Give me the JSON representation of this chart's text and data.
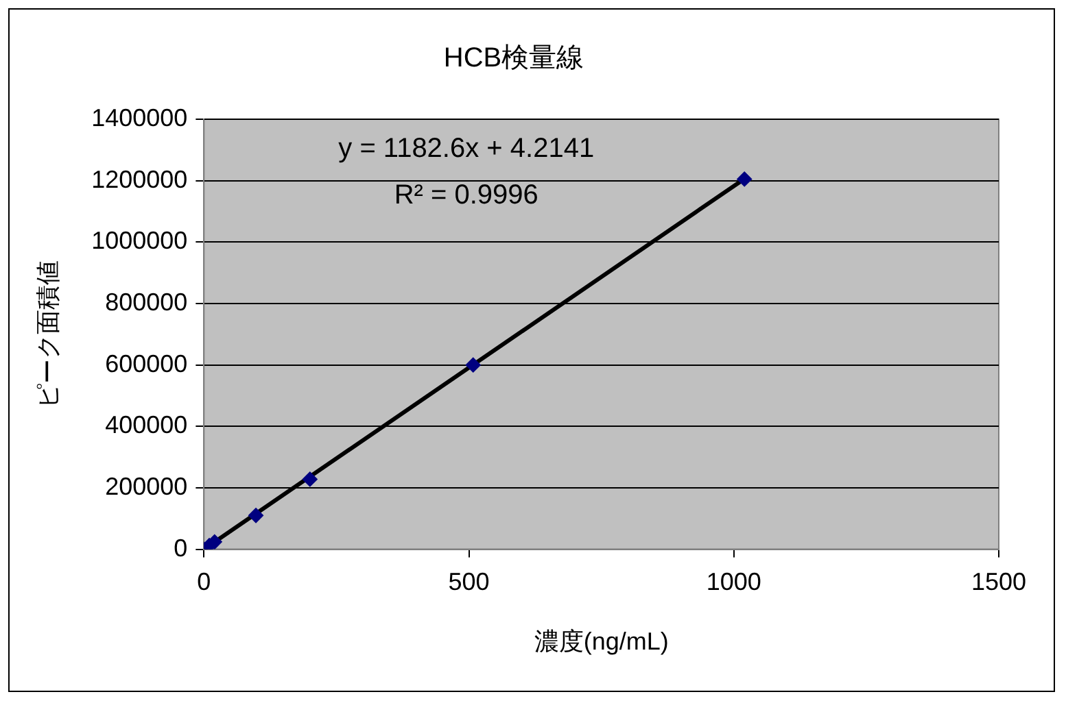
{
  "chart_data": {
    "type": "scatter",
    "title": "HCB検量線",
    "xlabel": "濃度(ng/mL)",
    "ylabel": "ピーク面積値",
    "series": [
      {
        "color": "#000080",
        "marker": "diamond",
        "x": [
          0,
          5,
          10,
          20,
          98,
          200,
          508,
          1020
        ],
        "values": [
          0,
          null,
          12000,
          24000,
          110000,
          228000,
          600000,
          1205000
        ]
      },
      {
        "type": "line",
        "color": "#000000",
        "marker": "none",
        "x": [
          0,
          1020
        ],
        "values": [
          0,
          1206000
        ]
      }
    ],
    "xlim": [
      0,
      1500
    ],
    "xticks": [
      0,
      500,
      1000,
      1500
    ],
    "ylim": [
      0,
      1400000
    ],
    "yticks": [
      0,
      200000,
      400000,
      600000,
      800000,
      1000000,
      1200000,
      1400000
    ],
    "grid": "y",
    "legend": false,
    "annotations": [
      "y = 1182.6x + 4.2141",
      "R² = 0.9996"
    ]
  }
}
